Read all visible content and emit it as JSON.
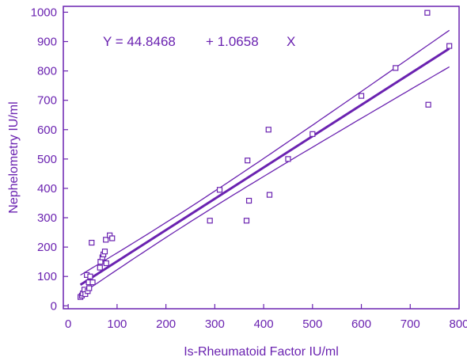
{
  "chart_data": {
    "type": "scatter",
    "color": "#6a22b0",
    "xlabel": "Is-Rheumatoid Factor IU/ml",
    "ylabel": "Nephelometry IU/ml",
    "equation": {
      "lhs": "Y = 44.8468",
      "plus": "+ 1.0658",
      "var": "X"
    },
    "xlim": [
      -10,
      800
    ],
    "ylim": [
      -10,
      1020
    ],
    "xticks": [
      "0",
      "100",
      "200",
      "300",
      "400",
      "500",
      "600",
      "700",
      "800"
    ],
    "yticks": [
      "0",
      "100",
      "200",
      "300",
      "400",
      "500",
      "600",
      "700",
      "800",
      "900",
      "1000"
    ],
    "regression": {
      "intercept": 44.8468,
      "slope": 1.0658,
      "x_range": [
        25,
        780
      ]
    },
    "points": [
      [
        25,
        30
      ],
      [
        28,
        35
      ],
      [
        30,
        42
      ],
      [
        33,
        55
      ],
      [
        35,
        40
      ],
      [
        38,
        105
      ],
      [
        40,
        50
      ],
      [
        42,
        80
      ],
      [
        43,
        60
      ],
      [
        45,
        100
      ],
      [
        48,
        215
      ],
      [
        50,
        80
      ],
      [
        65,
        130
      ],
      [
        66,
        150
      ],
      [
        70,
        165
      ],
      [
        72,
        175
      ],
      [
        75,
        185
      ],
      [
        77,
        225
      ],
      [
        78,
        145
      ],
      [
        85,
        240
      ],
      [
        90,
        230
      ],
      [
        290,
        290
      ],
      [
        310,
        395
      ],
      [
        365,
        290
      ],
      [
        367,
        495
      ],
      [
        370,
        358
      ],
      [
        410,
        600
      ],
      [
        412,
        378
      ],
      [
        450,
        500
      ],
      [
        500,
        585
      ],
      [
        600,
        715
      ],
      [
        670,
        810
      ],
      [
        735,
        998
      ],
      [
        737,
        685
      ],
      [
        780,
        885
      ]
    ]
  }
}
